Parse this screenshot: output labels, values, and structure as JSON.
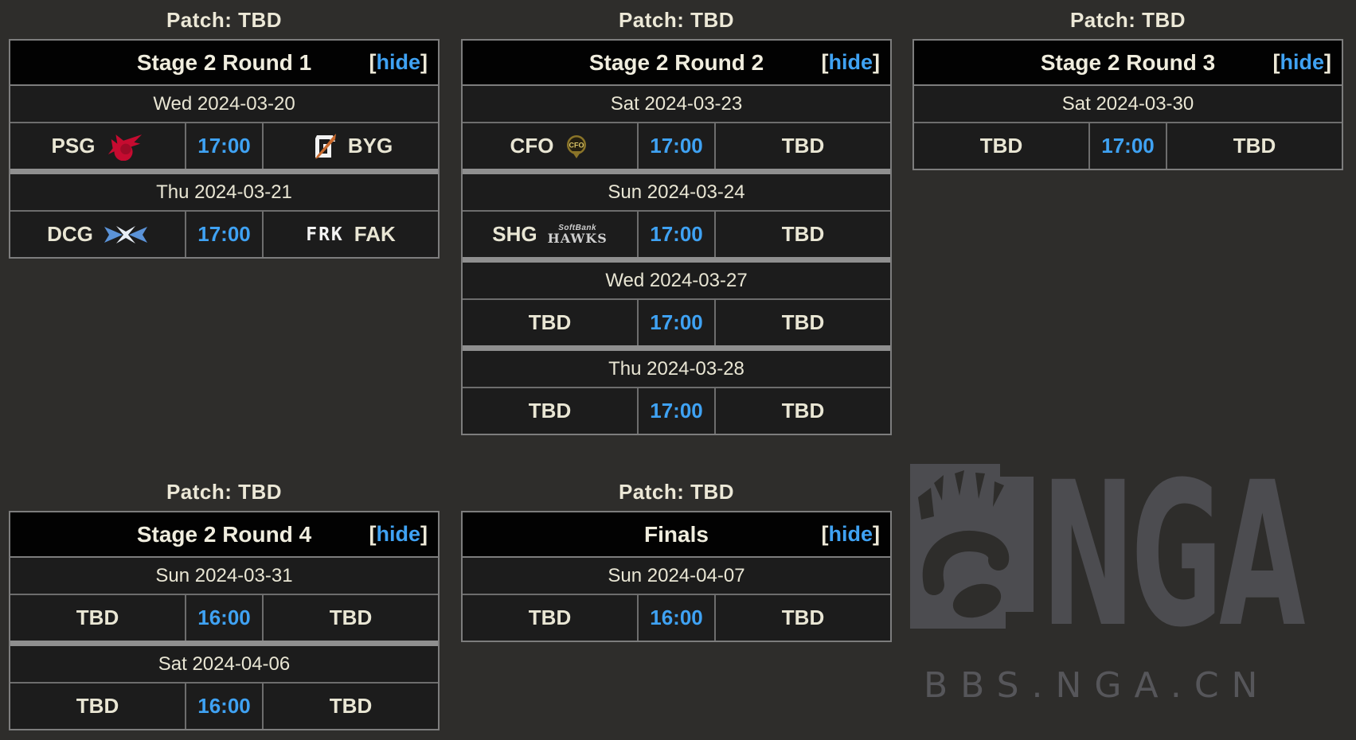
{
  "labels": {
    "patch": "Patch: TBD",
    "hide": "hide",
    "bracket_open": "[",
    "bracket_close": "]"
  },
  "colors": {
    "page_bg": "#2e2d2b",
    "cell_bg": "#1c1c1c",
    "header_bg": "#020202",
    "cream_text": "#ece8d7",
    "accent_blue": "#3fa2f3",
    "thin_border": "#6d6d6d",
    "outer_border": "#7d7d7d",
    "group_separator": "#8f8f8f",
    "watermark_gray": "#4c4c50"
  },
  "tables": [
    {
      "patch": "Patch: TBD",
      "title": "Stage 2 Round 1",
      "groups": [
        {
          "date": "Wed 2024-03-20",
          "matches": [
            {
              "left": {
                "name": "PSG",
                "logo": "psg"
              },
              "time": "17:00",
              "right": {
                "name": "BYG",
                "logo": "byg"
              }
            }
          ]
        },
        {
          "date": "Thu 2024-03-21",
          "matches": [
            {
              "left": {
                "name": "DCG",
                "logo": "dcg"
              },
              "time": "17:00",
              "right": {
                "name": "FAK",
                "logo": "fak"
              }
            }
          ]
        }
      ]
    },
    {
      "patch": "Patch: TBD",
      "title": "Stage 2 Round 2",
      "groups": [
        {
          "date": "Sat 2024-03-23",
          "matches": [
            {
              "left": {
                "name": "CFO",
                "logo": "cfo"
              },
              "time": "17:00",
              "right": {
                "name": "TBD",
                "logo": null
              }
            }
          ]
        },
        {
          "date": "Sun 2024-03-24",
          "matches": [
            {
              "left": {
                "name": "SHG",
                "logo": "shg"
              },
              "time": "17:00",
              "right": {
                "name": "TBD",
                "logo": null
              }
            }
          ]
        },
        {
          "date": "Wed 2024-03-27",
          "matches": [
            {
              "left": {
                "name": "TBD",
                "logo": null
              },
              "time": "17:00",
              "right": {
                "name": "TBD",
                "logo": null
              }
            }
          ]
        },
        {
          "date": "Thu 2024-03-28",
          "matches": [
            {
              "left": {
                "name": "TBD",
                "logo": null
              },
              "time": "17:00",
              "right": {
                "name": "TBD",
                "logo": null
              }
            }
          ]
        }
      ]
    },
    {
      "patch": "Patch: TBD",
      "title": "Stage 2 Round 3",
      "groups": [
        {
          "date": "Sat 2024-03-30",
          "matches": [
            {
              "left": {
                "name": "TBD",
                "logo": null
              },
              "time": "17:00",
              "right": {
                "name": "TBD",
                "logo": null
              }
            }
          ]
        }
      ]
    },
    {
      "patch": "Patch: TBD",
      "title": "Stage 2 Round 4",
      "groups": [
        {
          "date": "Sun 2024-03-31",
          "matches": [
            {
              "left": {
                "name": "TBD",
                "logo": null
              },
              "time": "16:00",
              "right": {
                "name": "TBD",
                "logo": null
              }
            }
          ]
        },
        {
          "date": "Sat 2024-04-06",
          "matches": [
            {
              "left": {
                "name": "TBD",
                "logo": null
              },
              "time": "16:00",
              "right": {
                "name": "TBD",
                "logo": null
              }
            }
          ]
        }
      ]
    },
    {
      "patch": "Patch: TBD",
      "title": "Finals",
      "groups": [
        {
          "date": "Sun 2024-04-07",
          "matches": [
            {
              "left": {
                "name": "TBD",
                "logo": null
              },
              "time": "16:00",
              "right": {
                "name": "TBD",
                "logo": null
              }
            }
          ]
        }
      ]
    }
  ],
  "watermark": {
    "logo_text": "NGA",
    "site_text": "BBS.NGA.CN"
  }
}
